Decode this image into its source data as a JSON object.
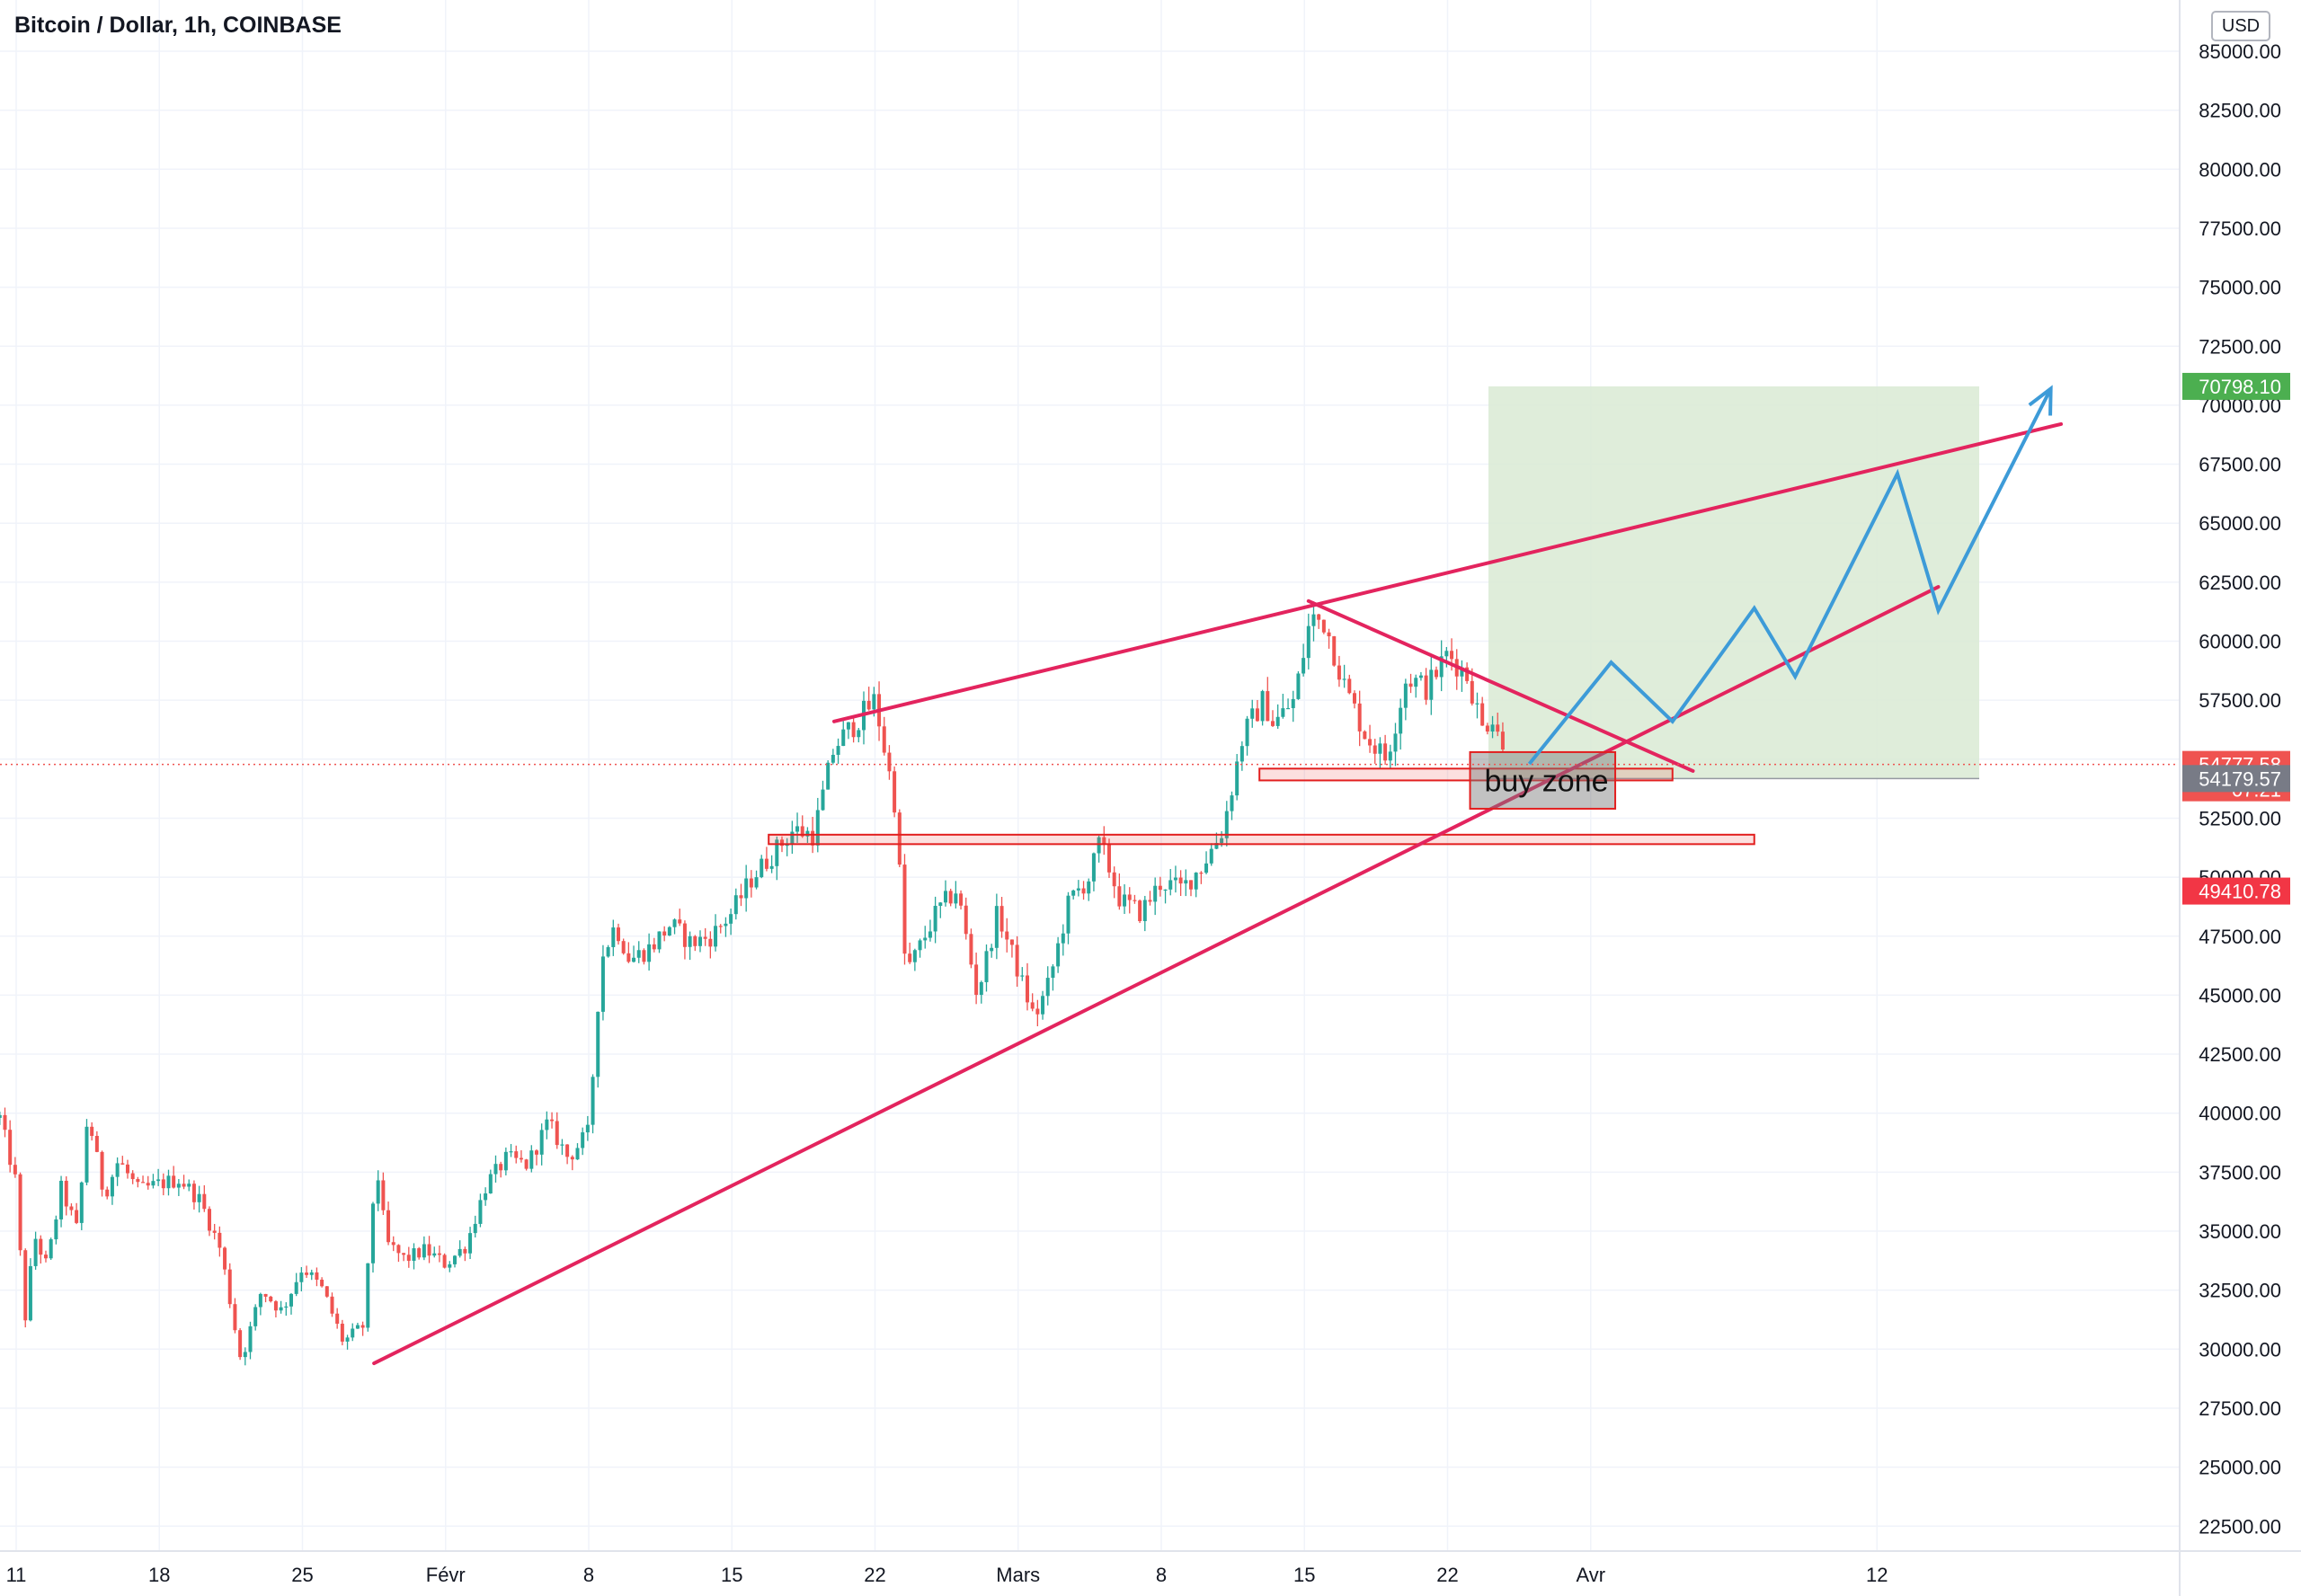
{
  "header": {
    "title": "Bitcoin / Dollar, 1h, COINBASE",
    "currency": "USD"
  },
  "colors": {
    "up": "#26a69a",
    "down": "#ef5350",
    "trendline": "#e3245e",
    "projection": "#3d9bd8",
    "target_zone": "#d9ead3",
    "stop_zone": "#fbd0d1",
    "grid": "#f0f3fa",
    "axis_text": "#131722"
  },
  "chart_data": {
    "type": "candlestick",
    "symbol": "Bitcoin / Dollar",
    "interval": "1h",
    "exchange": "COINBASE",
    "ylim": [
      21000,
      86000
    ],
    "y_ticks": [
      "85000.00",
      "82500.00",
      "80000.00",
      "77500.00",
      "75000.00",
      "72500.00",
      "70000.00",
      "67500.00",
      "65000.00",
      "62500.00",
      "60000.00",
      "57500.00",
      "55000.00",
      "52500.00",
      "50000.00",
      "47500.00",
      "45000.00",
      "42500.00",
      "40000.00",
      "37500.00",
      "35000.00",
      "32500.00",
      "30000.00",
      "27500.00",
      "25000.00",
      "22500.00"
    ],
    "x_ticks": [
      "11",
      "18",
      "25",
      "Févr",
      "8",
      "15",
      "22",
      "Mars",
      "8",
      "15",
      "22",
      "Avr",
      "12"
    ],
    "x_tick_days": [
      0,
      7,
      14,
      21,
      28,
      35,
      42,
      49,
      56,
      63,
      70,
      77,
      91
    ],
    "date_start": "2021-01-11",
    "price_path": [
      [
        -0.8,
        39800
      ],
      [
        0.0,
        37000
      ],
      [
        0.4,
        31000
      ],
      [
        0.9,
        34800
      ],
      [
        1.5,
        33500
      ],
      [
        2.2,
        36800
      ],
      [
        3.0,
        35000
      ],
      [
        3.5,
        40000
      ],
      [
        4.3,
        36500
      ],
      [
        5.0,
        38000
      ],
      [
        6.0,
        36700
      ],
      [
        7.0,
        37000
      ],
      [
        8.0,
        37200
      ],
      [
        9.0,
        36300
      ],
      [
        10.0,
        34200
      ],
      [
        11.0,
        29500
      ],
      [
        12.0,
        32500
      ],
      [
        13.0,
        31600
      ],
      [
        14.0,
        33500
      ],
      [
        15.0,
        32500
      ],
      [
        16.0,
        30300
      ],
      [
        17.0,
        31000
      ],
      [
        17.6,
        38000
      ],
      [
        18.1,
        34500
      ],
      [
        19.0,
        33800
      ],
      [
        20.0,
        34200
      ],
      [
        21.0,
        33600
      ],
      [
        22.0,
        34400
      ],
      [
        23.0,
        37000
      ],
      [
        24.0,
        38100
      ],
      [
        25.0,
        37800
      ],
      [
        26.0,
        39600
      ],
      [
        27.0,
        38100
      ],
      [
        28.0,
        39200
      ],
      [
        28.6,
        46500
      ],
      [
        29.3,
        48000
      ],
      [
        30.0,
        46500
      ],
      [
        31.0,
        47000
      ],
      [
        32.0,
        48000
      ],
      [
        33.0,
        47200
      ],
      [
        34.0,
        47500
      ],
      [
        35.0,
        48500
      ],
      [
        36.0,
        50000
      ],
      [
        37.0,
        51000
      ],
      [
        38.0,
        52000
      ],
      [
        39.0,
        51800
      ],
      [
        40.0,
        55500
      ],
      [
        41.0,
        56500
      ],
      [
        42.0,
        57500
      ],
      [
        43.0,
        53000
      ],
      [
        43.5,
        46000
      ],
      [
        44.0,
        46700
      ],
      [
        45.0,
        48500
      ],
      [
        46.0,
        49500
      ],
      [
        47.0,
        45000
      ],
      [
        48.0,
        48500
      ],
      [
        49.0,
        46000
      ],
      [
        49.8,
        44000
      ],
      [
        50.5,
        45500
      ],
      [
        51.5,
        49000
      ],
      [
        52.5,
        50000
      ],
      [
        53.0,
        51500
      ],
      [
        54.0,
        49000
      ],
      [
        55.0,
        48500
      ],
      [
        56.0,
        49800
      ],
      [
        57.0,
        49500
      ],
      [
        58.0,
        50500
      ],
      [
        59.0,
        52000
      ],
      [
        60.0,
        56000
      ],
      [
        61.0,
        57500
      ],
      [
        61.5,
        56500
      ],
      [
        62.5,
        57500
      ],
      [
        63.3,
        61000
      ],
      [
        64.0,
        60800
      ],
      [
        65.0,
        58000
      ],
      [
        66.0,
        56000
      ],
      [
        67.0,
        55000
      ],
      [
        68.0,
        58500
      ],
      [
        69.0,
        58000
      ],
      [
        70.0,
        59500
      ],
      [
        71.0,
        58500
      ],
      [
        71.7,
        56300
      ],
      [
        72.3,
        57000
      ],
      [
        72.8,
        54800
      ]
    ],
    "annotations": {
      "label": "buy zone",
      "upper_trendline": [
        [
          40.0,
          56600
        ],
        [
          100.0,
          69200
        ]
      ],
      "lower_trendline": [
        [
          17.5,
          29400
        ],
        [
          94.0,
          62300
        ]
      ],
      "descending_trendline": [
        [
          63.2,
          61700
        ],
        [
          82.0,
          54500
        ]
      ],
      "support_zone_1": [
        [
          36.8,
          51800
        ],
        [
          85.0,
          51400
        ]
      ],
      "support_zone_2": [
        [
          60.8,
          54600
        ],
        [
          81.0,
          54100
        ]
      ],
      "buy_zone_box": [
        [
          71.1,
          55300
        ],
        [
          78.2,
          52900
        ]
      ],
      "projection_path": [
        [
          74.0,
          54800
        ],
        [
          78.0,
          59100
        ],
        [
          81.0,
          56600
        ],
        [
          85.0,
          61400
        ],
        [
          87.0,
          58500
        ],
        [
          92.0,
          67100
        ],
        [
          94.0,
          61300
        ],
        [
          99.5,
          70700
        ]
      ],
      "target_zone": {
        "x": [
          72.0,
          96.0
        ],
        "from": 54179.57,
        "to": 70798.1
      },
      "stop_zone": {
        "x": [
          72.0,
          96.0
        ],
        "from": 49410.78,
        "to": 54179.57
      }
    },
    "price_labels": {
      "last": "54777.58",
      "countdown": "07:21",
      "entry": "54179.57",
      "target": "70798.10",
      "stop": "49410.78"
    }
  }
}
